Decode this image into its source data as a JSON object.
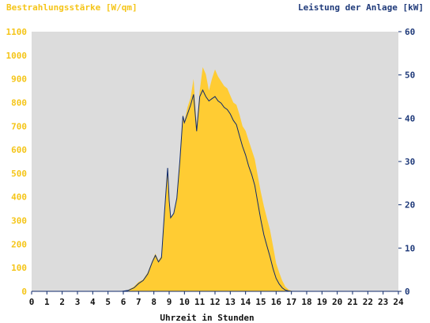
{
  "colors": {
    "plot_bg": "#dcdcdc",
    "irradiance_fill": "#ffcc33",
    "irradiance_text": "#f5c518",
    "power_line": "#0f2a6b",
    "power_text": "#1f3a7a",
    "axis_text": "#111111"
  },
  "chart_data": {
    "type": "area",
    "title_left": "Bestrahlungsstärke [W/qm]",
    "title_right": "Leistung der Anlage [kW]",
    "xlabel": "Uhrzeit in Stunden",
    "xlim": [
      0,
      24
    ],
    "ylim_left": [
      0,
      1100
    ],
    "ylim_right": [
      0,
      60
    ],
    "x_ticks": [
      "0",
      "1",
      "2",
      "3",
      "4",
      "5",
      "6",
      "7",
      "8",
      "9",
      "10",
      "11",
      "12",
      "13",
      "14",
      "15",
      "16",
      "17",
      "18",
      "19",
      "20",
      "21",
      "22",
      "23",
      "24"
    ],
    "y_left_ticks": [
      "0",
      "100",
      "200",
      "300",
      "400",
      "500",
      "600",
      "700",
      "800",
      "900",
      "1000",
      "1100"
    ],
    "y_right_ticks": [
      "0",
      "10",
      "20",
      "30",
      "40",
      "50",
      "60"
    ],
    "grid": false,
    "series": [
      {
        "axis": "left",
        "style": "area",
        "x": [
          0,
          5.9,
          6.3,
          6.7,
          7.0,
          7.3,
          7.6,
          7.9,
          8.1,
          8.3,
          8.5,
          8.7,
          8.9,
          9.0,
          9.1,
          9.3,
          9.5,
          9.7,
          9.9,
          10.0,
          10.2,
          10.4,
          10.6,
          10.8,
          11.0,
          11.2,
          11.4,
          11.6,
          11.8,
          12.0,
          12.2,
          12.4,
          12.6,
          12.8,
          13.0,
          13.2,
          13.4,
          13.6,
          13.8,
          14.0,
          14.2,
          14.4,
          14.6,
          14.8,
          15.0,
          15.2,
          15.4,
          15.6,
          15.8,
          16.0,
          16.2,
          16.4,
          16.6,
          16.8,
          17.0,
          17.2,
          17.4,
          17.6,
          17.8,
          18.0,
          18.2,
          18.4,
          18.6,
          18.8,
          19.0,
          19.2,
          24
        ],
        "values": [
          0,
          0,
          5,
          20,
          40,
          50,
          80,
          130,
          160,
          130,
          150,
          350,
          520,
          380,
          310,
          330,
          400,
          560,
          750,
          720,
          780,
          820,
          900,
          700,
          850,
          950,
          920,
          850,
          900,
          940,
          910,
          890,
          870,
          860,
          830,
          800,
          790,
          750,
          700,
          680,
          640,
          600,
          560,
          490,
          420,
          360,
          310,
          260,
          190,
          120,
          80,
          45,
          20,
          8,
          2,
          0,
          0,
          0,
          0,
          0,
          0,
          0,
          0,
          0,
          0,
          0,
          0
        ]
      },
      {
        "axis": "right",
        "style": "line",
        "x": [
          0,
          5.9,
          6.3,
          6.7,
          7.0,
          7.3,
          7.6,
          7.9,
          8.1,
          8.3,
          8.5,
          8.7,
          8.9,
          9.0,
          9.1,
          9.3,
          9.5,
          9.7,
          9.9,
          10.0,
          10.2,
          10.4,
          10.6,
          10.8,
          11.0,
          11.2,
          11.4,
          11.6,
          11.8,
          12.0,
          12.2,
          12.4,
          12.6,
          12.8,
          13.0,
          13.2,
          13.4,
          13.6,
          13.8,
          14.0,
          14.2,
          14.4,
          14.6,
          14.8,
          15.0,
          15.2,
          15.4,
          15.6,
          15.8,
          16.0,
          16.2,
          16.4,
          16.6,
          16.8,
          17.0,
          17.2,
          17.4,
          17.6,
          17.8,
          18.0,
          18.2,
          18.4,
          18.6,
          18.8,
          19.0,
          19.2,
          24
        ],
        "values": [
          0,
          0,
          0.2,
          0.8,
          1.8,
          2.5,
          4.0,
          6.8,
          8.3,
          6.8,
          7.8,
          18.5,
          28.5,
          21.0,
          17.0,
          18.0,
          21.5,
          30.0,
          40.5,
          39.0,
          41.0,
          43.0,
          45.5,
          37.0,
          45.0,
          46.5,
          45.0,
          44.0,
          44.5,
          45.0,
          44.0,
          43.5,
          42.5,
          42.0,
          41.0,
          39.5,
          38.5,
          36.0,
          33.5,
          31.5,
          29.0,
          27.0,
          24.5,
          20.5,
          16.5,
          13.0,
          10.5,
          8.0,
          5.2,
          3.0,
          1.7,
          0.8,
          0.3,
          0.1,
          0,
          0,
          0,
          0,
          0,
          0,
          0,
          0,
          0,
          0,
          0,
          0,
          0
        ]
      }
    ]
  }
}
